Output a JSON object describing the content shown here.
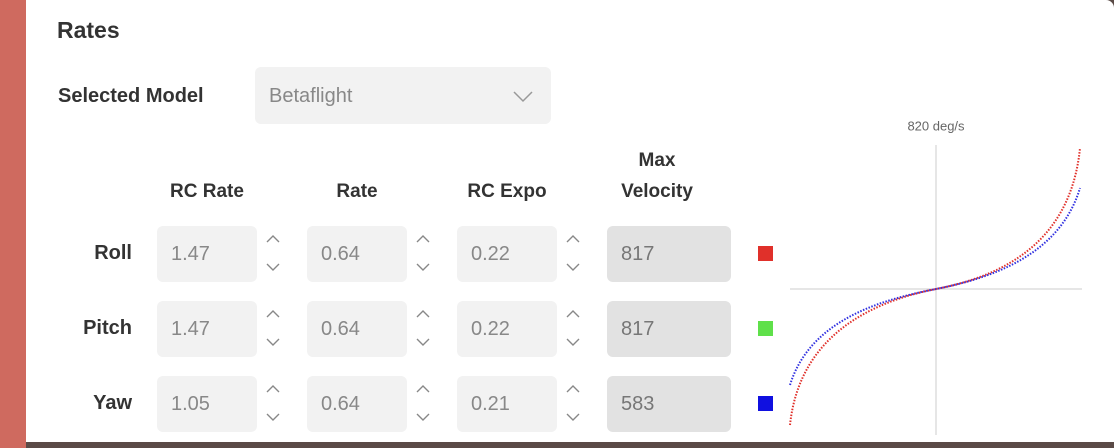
{
  "panel": {
    "title": "Rates",
    "model_label": "Selected Model",
    "model_value": "Betaflight"
  },
  "table": {
    "headers": [
      "RC Rate",
      "Rate",
      "RC Expo",
      "Max Velocity"
    ],
    "rows": [
      {
        "axis": "Roll",
        "rc_rate": "1.47",
        "rate": "0.64",
        "rc_expo": "0.22",
        "max_velocity": "817",
        "color": "#e0302a"
      },
      {
        "axis": "Pitch",
        "rc_rate": "1.47",
        "rate": "0.64",
        "rc_expo": "0.22",
        "max_velocity": "817",
        "color": "#5fe04a"
      },
      {
        "axis": "Yaw",
        "rc_rate": "1.05",
        "rate": "0.64",
        "rc_expo": "0.21",
        "max_velocity": "583",
        "color": "#1010e0"
      }
    ]
  },
  "graph": {
    "label": "820 deg/s"
  }
}
